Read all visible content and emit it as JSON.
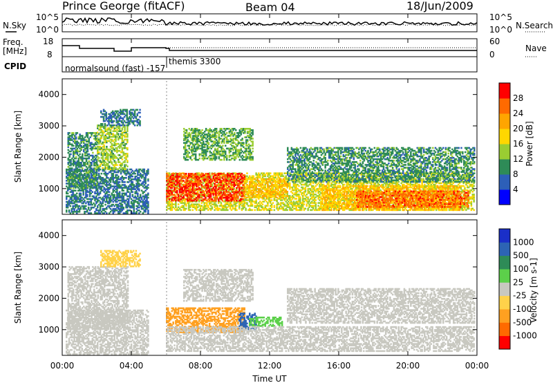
{
  "header": {
    "station": "Prince George (fitACF)",
    "beam": "Beam 04",
    "date": "18/Jun/2009"
  },
  "sky_panel": {
    "left_label": "N.Sky",
    "right_label": "N.Search",
    "y_ticks_left": [
      "10^5",
      "10^0"
    ],
    "y_ticks_right": [
      "10^5",
      "10^0"
    ]
  },
  "freq_panel": {
    "left_label_1": "Freq.",
    "left_label_2": "[MHz]",
    "right_label": "Nave",
    "y_ticks_left": [
      "18",
      "8"
    ],
    "y_ticks_right": [
      "60",
      "0"
    ]
  },
  "cpid": {
    "label": "CPID",
    "mode_1": "normalsound (fast) -157",
    "mode_2": "themis 3300"
  },
  "x_axis": {
    "title": "Time UT",
    "ticks": [
      "00:00",
      "04:00",
      "08:00",
      "12:00",
      "16:00",
      "20:00",
      "00:00"
    ]
  },
  "colorbars": {
    "power": {
      "title": "Power [dB]",
      "ticks": [
        "28",
        "24",
        "20",
        "16",
        "12",
        "8",
        "4"
      ],
      "colors": [
        "#0000ff",
        "#2d5fb8",
        "#2e8b57",
        "#9acd32",
        "#ffd700",
        "#ffa500",
        "#ff6a00",
        "#ff0000"
      ]
    },
    "velocity": {
      "title": "Velocity [m s-1]",
      "ticks": [
        "1000",
        "500",
        "100",
        "25",
        "-25",
        "-100",
        "-500",
        "-1000"
      ],
      "colors": [
        "#1a2fc8",
        "#2d64b4",
        "#2e8b57",
        "#5cd04a",
        "#c8c8c0",
        "#ffd24a",
        "#ffa020",
        "#ff6a00",
        "#ff0000"
      ]
    }
  },
  "chart_data": [
    {
      "type": "heatmap",
      "title": "",
      "xlabel": "Time UT",
      "ylabel": "Slant Range [km]",
      "xlim": [
        0,
        24
      ],
      "ylim": [
        180,
        4500
      ],
      "yticks": [
        "1000",
        "2000",
        "3000",
        "4000"
      ],
      "colorbar_label": "Power [dB]",
      "colorbar_range": [
        0,
        32
      ],
      "scatter_regions": [
        {
          "t0": 0.2,
          "t1": 5.0,
          "r0": 200,
          "r1": 1600,
          "value": 8
        },
        {
          "t0": 0.3,
          "t1": 2.0,
          "r0": 1000,
          "r1": 2800,
          "value": 10
        },
        {
          "t0": 2.0,
          "t1": 3.8,
          "r0": 1600,
          "r1": 3000,
          "value": 14
        },
        {
          "t0": 2.2,
          "t1": 4.5,
          "r0": 3000,
          "r1": 3500,
          "value": 8
        },
        {
          "t0": 6.0,
          "t1": 23.8,
          "r0": 300,
          "r1": 1500,
          "value": 16
        },
        {
          "t0": 6.0,
          "t1": 10.5,
          "r0": 600,
          "r1": 1500,
          "value": 28
        },
        {
          "t0": 10.5,
          "t1": 13.0,
          "r0": 700,
          "r1": 1300,
          "value": 20
        },
        {
          "t0": 15.0,
          "t1": 23.0,
          "r0": 300,
          "r1": 1100,
          "value": 20
        },
        {
          "t0": 17.0,
          "t1": 23.5,
          "r0": 400,
          "r1": 900,
          "value": 26
        },
        {
          "t0": 7.0,
          "t1": 11.0,
          "r0": 1900,
          "r1": 2900,
          "value": 12
        },
        {
          "t0": 13.0,
          "t1": 23.8,
          "r0": 1200,
          "r1": 2300,
          "value": 10
        }
      ]
    },
    {
      "type": "heatmap",
      "title": "",
      "xlabel": "Time UT",
      "ylabel": "Slant Range [km]",
      "xlim": [
        0,
        24
      ],
      "ylim": [
        180,
        4500
      ],
      "yticks": [
        "1000",
        "2000",
        "3000",
        "4000"
      ],
      "colorbar_label": "Velocity [m s-1]",
      "scatter_regions": [
        {
          "t0": 0.2,
          "t1": 5.0,
          "r0": 200,
          "r1": 1600,
          "value": 0
        },
        {
          "t0": 0.3,
          "t1": 3.8,
          "r0": 1000,
          "r1": 3000,
          "value": 0
        },
        {
          "t0": 2.2,
          "t1": 4.5,
          "r0": 3000,
          "r1": 3500,
          "value": -60
        },
        {
          "t0": 6.0,
          "t1": 10.5,
          "r0": 900,
          "r1": 1700,
          "value": -300
        },
        {
          "t0": 10.2,
          "t1": 11.2,
          "r0": 1000,
          "r1": 1500,
          "value": 800
        },
        {
          "t0": 10.8,
          "t1": 12.7,
          "r0": 1100,
          "r1": 1400,
          "value": 60
        },
        {
          "t0": 6.0,
          "t1": 23.8,
          "r0": 300,
          "r1": 1100,
          "value": 0
        },
        {
          "t0": 7.0,
          "t1": 11.0,
          "r0": 1900,
          "r1": 2900,
          "value": 0
        },
        {
          "t0": 13.0,
          "t1": 23.8,
          "r0": 1200,
          "r1": 2300,
          "value": 0
        }
      ]
    }
  ]
}
